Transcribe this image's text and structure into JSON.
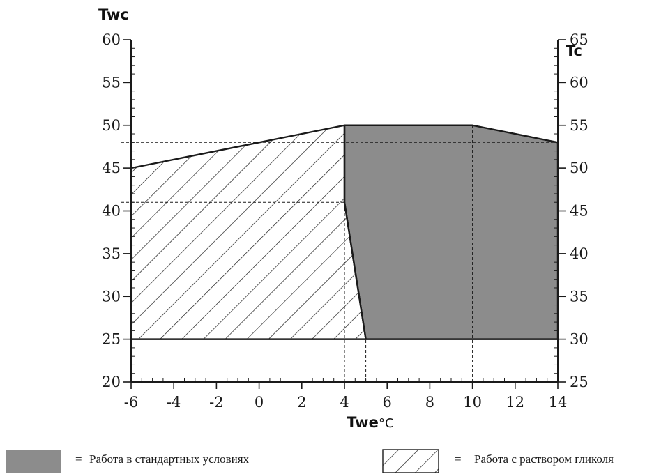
{
  "chart_data": {
    "type": "area",
    "xlabel": "Twe",
    "x_unit": "°C",
    "ylabel_left": "Twc",
    "ylabel_right": "Tc",
    "xlim": [
      -6,
      14
    ],
    "ylim_left": [
      20,
      60
    ],
    "ylim_right": [
      25,
      65
    ],
    "x_ticks": [
      -6,
      -4,
      -2,
      0,
      2,
      4,
      6,
      8,
      10,
      12,
      14
    ],
    "y_ticks_left": [
      20,
      25,
      30,
      35,
      40,
      45,
      50,
      55,
      60
    ],
    "y_ticks_right": [
      25,
      30,
      35,
      40,
      45,
      50,
      55,
      60,
      65
    ],
    "regions": [
      {
        "name": "Работа в стандартных условиях",
        "fill": "solid",
        "color": "#8c8c8c",
        "points": [
          [
            4,
            50
          ],
          [
            10,
            50
          ],
          [
            14,
            48
          ],
          [
            14,
            25
          ],
          [
            5,
            25
          ],
          [
            4,
            41
          ],
          [
            4,
            50
          ]
        ]
      },
      {
        "name": "Работа с раствором гликоля",
        "fill": "hatched",
        "color": "#1a1a1a",
        "points": [
          [
            -6,
            45
          ],
          [
            4,
            50
          ],
          [
            4,
            41
          ],
          [
            5,
            25
          ],
          [
            -6,
            25
          ]
        ]
      }
    ],
    "reference_lines": [
      {
        "orientation": "horizontal",
        "y": 48,
        "x_from": -6,
        "x_to": 14
      },
      {
        "orientation": "horizontal",
        "y": 41,
        "x_from": -6,
        "x_to": 4
      },
      {
        "orientation": "vertical",
        "x": 4,
        "y_from": 20,
        "y_to": 50
      },
      {
        "orientation": "vertical",
        "x": 5,
        "y_from": 20,
        "y_to": 25
      },
      {
        "orientation": "vertical",
        "x": 10,
        "y_from": 20,
        "y_to": 50
      }
    ],
    "legend": [
      {
        "label": "Работа в стандартных условиях",
        "swatch": "solid"
      },
      {
        "label": "Работа с раствором гликоля",
        "swatch": "hatched"
      }
    ],
    "legend_position": "bottom",
    "legend_separator": "="
  }
}
